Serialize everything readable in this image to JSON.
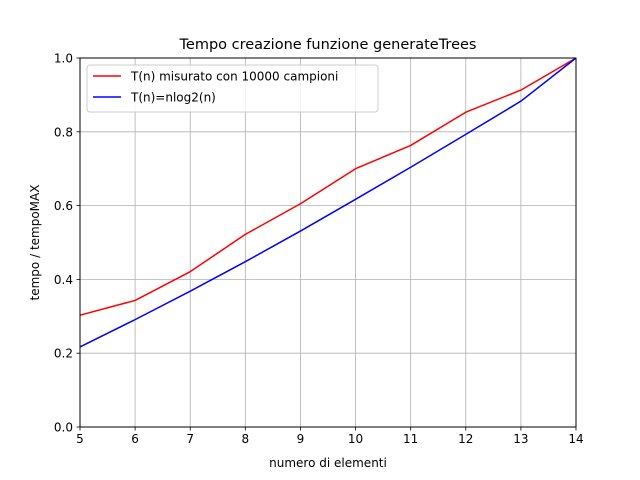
{
  "chart_data": {
    "type": "line",
    "title": "Tempo creazione funzione generateTrees",
    "xlabel": "numero di elementi",
    "ylabel": "tempo / tempoMAX",
    "xlim": [
      5,
      14
    ],
    "ylim": [
      0.0,
      1.0
    ],
    "xticks": [
      5,
      6,
      7,
      8,
      9,
      10,
      11,
      12,
      13,
      14
    ],
    "xtick_labels": [
      "5",
      "6",
      "7",
      "8",
      "9",
      "10",
      "11",
      "12",
      "13",
      "14"
    ],
    "yticks": [
      0.0,
      0.2,
      0.4,
      0.6,
      0.8,
      1.0
    ],
    "ytick_labels": [
      "0.0",
      "0.2",
      "0.4",
      "0.6",
      "0.8",
      "1.0"
    ],
    "grid": true,
    "legend_position": "upper-left",
    "x": [
      5,
      6,
      7,
      8,
      9,
      10,
      11,
      12,
      13,
      14
    ],
    "series": [
      {
        "name": "T(n) misurato con 10000 campioni",
        "color": "#ff0000",
        "values": [
          0.303,
          0.343,
          0.421,
          0.522,
          0.605,
          0.7,
          0.763,
          0.853,
          0.913,
          1.0
        ]
      },
      {
        "name": "T(n)=nlog2(n)",
        "color": "#0000ff",
        "values": [
          0.217,
          0.291,
          0.368,
          0.448,
          0.531,
          0.617,
          0.704,
          0.793,
          0.883,
          1.0
        ]
      }
    ]
  }
}
